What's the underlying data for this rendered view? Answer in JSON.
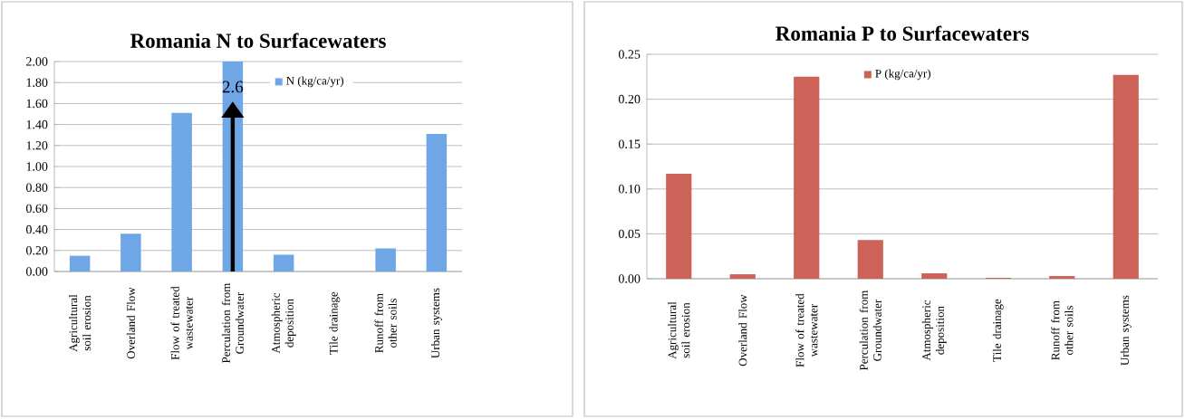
{
  "chart_data": [
    {
      "type": "bar",
      "title": "Romania N to Surfacewaters",
      "categories": [
        "Agricultural soil erosion",
        "Overland Flow",
        "Flow of treated wastewater",
        "Perculation from Groundwater",
        "Atmospheric deposition",
        "Tile drainage",
        "Runoff from other soils",
        "Urban systems"
      ],
      "series": [
        {
          "name": "N (kg/ca/yr)",
          "color": "#6fa6e6",
          "values": [
            0.15,
            0.36,
            1.51,
            2.0,
            0.16,
            0,
            0.22,
            1.31
          ]
        }
      ],
      "ylim": [
        0,
        2.0
      ],
      "yticks": [
        {
          "value": 0,
          "label": "0.00"
        },
        {
          "value": 0.2,
          "label": "0.20"
        },
        {
          "value": 0.4,
          "label": "0.40"
        },
        {
          "value": 0.6,
          "label": "0.60"
        },
        {
          "value": 0.8,
          "label": "0.80"
        },
        {
          "value": 1.0,
          "label": "1.00"
        },
        {
          "value": 1.2,
          "label": "1.20"
        },
        {
          "value": 1.4,
          "label": "1.40"
        },
        {
          "value": 1.6,
          "label": "1.60"
        },
        {
          "value": 1.8,
          "label": "1.80"
        },
        {
          "value": 2.0,
          "label": "2.00"
        }
      ],
      "grid": "y",
      "legend": "top right",
      "annotations": [
        "2.6"
      ]
    },
    {
      "type": "bar",
      "title": "Romania P to Surfacewaters",
      "categories": [
        "Agricultural soil erosion",
        "Overland Flow",
        "Flow of treated wastewater",
        "Perculation from Groundwater",
        "Atmospheric deposition",
        "Tile drainage",
        "Runoff from other soils",
        "Urban systems"
      ],
      "series": [
        {
          "name": "P (kg/ca/yr)",
          "color": "#cc6258",
          "values": [
            0.117,
            0.005,
            0.225,
            0.043,
            0.006,
            0.001,
            0.003,
            0.227
          ]
        }
      ],
      "ylim": [
        0,
        0.25
      ],
      "yticks": [
        {
          "value": 0,
          "label": "0.00"
        },
        {
          "value": 0.05,
          "label": "0.05"
        },
        {
          "value": 0.1,
          "label": "0.10"
        },
        {
          "value": 0.15,
          "label": "0.15"
        },
        {
          "value": 0.2,
          "label": "0.20"
        },
        {
          "value": 0.25,
          "label": "0.25"
        }
      ],
      "grid": "y",
      "legend": "top right"
    }
  ]
}
